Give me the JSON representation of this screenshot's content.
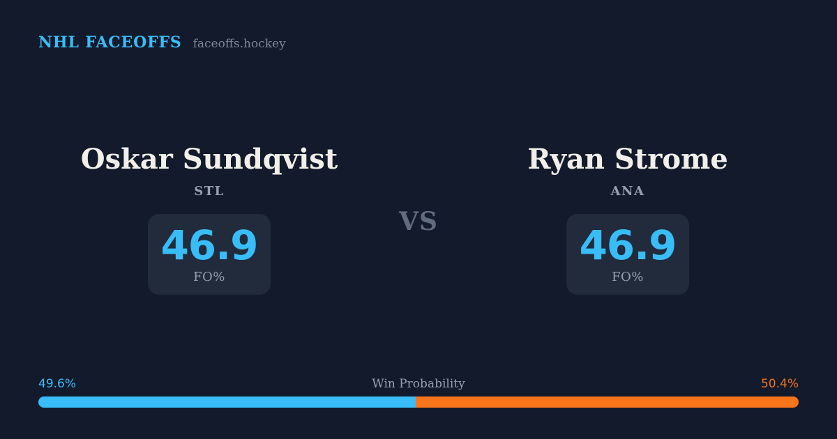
{
  "header": {
    "brand": "NHL FACEOFFS",
    "site": "faceoffs.hockey"
  },
  "matchup": {
    "vs_label": "VS",
    "players": [
      {
        "name": "Oskar Sundqvist",
        "team": "STL",
        "stat_value": "46.9",
        "stat_label": "FO%"
      },
      {
        "name": "Ryan Strome",
        "team": "ANA",
        "stat_value": "46.9",
        "stat_label": "FO%"
      }
    ]
  },
  "win_probability": {
    "title": "Win Probability",
    "left_pct": "49.6%",
    "right_pct": "50.4%",
    "left_value": 49.6,
    "right_value": 50.4
  },
  "colors": {
    "background": "#121A2B",
    "panel": "#212B3B",
    "accent_blue": "#38BDF8",
    "accent_orange": "#F7741B",
    "text_muted": "#97A0B1",
    "text_dim": "#7E8898",
    "text_vs": "#626C80",
    "text_name": "#F0EFE9"
  }
}
